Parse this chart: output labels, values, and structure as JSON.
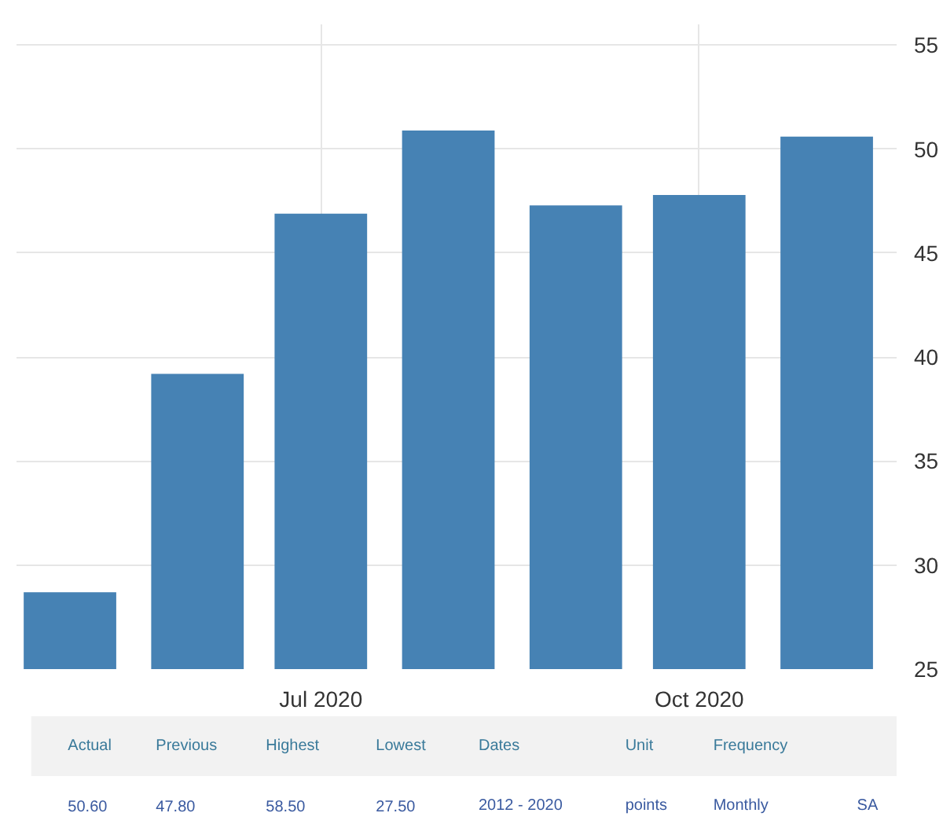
{
  "chart_data": {
    "type": "bar",
    "x": [
      "2020-05",
      "2020-06",
      "2020-07",
      "2020-08",
      "2020-09",
      "2020-10",
      "2020-11"
    ],
    "values": [
      28.7,
      39.2,
      46.9,
      50.9,
      47.3,
      47.8,
      50.6
    ],
    "color": "#4682b4",
    "xlim": [
      "2020-04-18",
      "2020-11-18"
    ],
    "xticks": [
      {
        "value": "2020-07",
        "label": "Jul 2020"
      },
      {
        "value": "2020-10",
        "label": "Oct 2020"
      }
    ],
    "ylim": [
      25,
      56
    ],
    "yticks": [
      25,
      30,
      35,
      40,
      45,
      50,
      55
    ],
    "grid": true,
    "annotations": [
      "Actual",
      "Previous",
      "Highest",
      "Lowest",
      "Dates",
      "Unit",
      "Frequency",
      "50.60",
      "47.80",
      "58.50",
      "27.50",
      "2012 - 2020",
      "points",
      "Monthly",
      "SA"
    ]
  }
}
